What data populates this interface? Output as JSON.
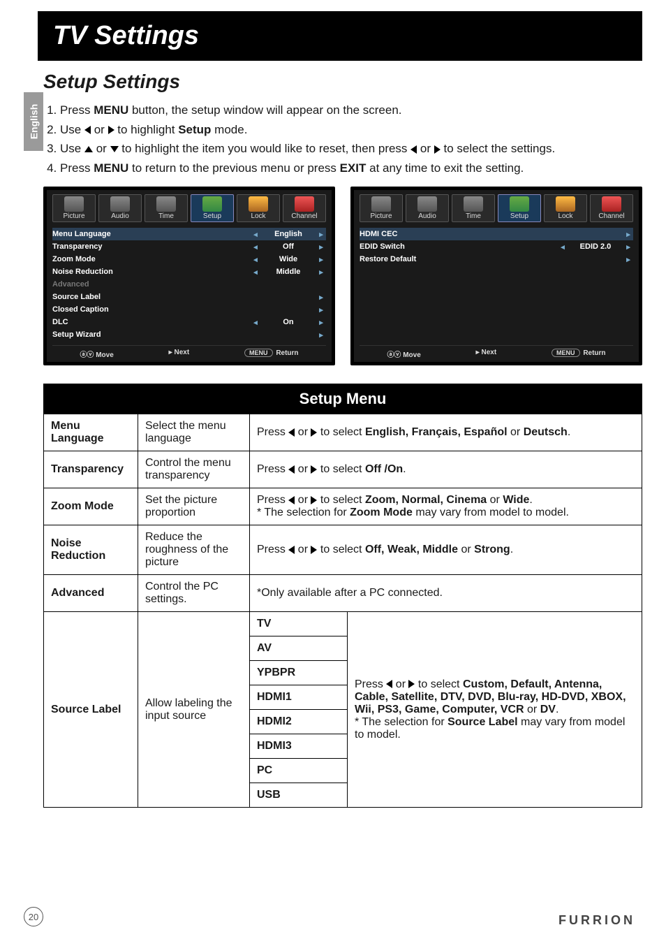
{
  "page": {
    "language_tab": "English",
    "title": "TV Settings",
    "section_title": "Setup Settings",
    "page_number": "20",
    "brand": "FURRION"
  },
  "instructions": [
    {
      "prefix": "Press ",
      "bold1": "MENU",
      "middle": " button, the setup window will appear on the screen.",
      "type": "plain"
    },
    {
      "prefix": "Use ",
      "arrows": "lr",
      "middle": " to highlight ",
      "bold1": "Setup",
      "suffix": " mode.",
      "type": "arrows_mid"
    },
    {
      "prefix": "Use ",
      "arrows": "ud",
      "middle": " to highlight the item you would like to reset, then press ",
      "arrows2": "lr",
      "suffix": " to select the settings.",
      "type": "arrows_double"
    },
    {
      "prefix": "Press ",
      "bold1": "MENU",
      "middle": " to return to the previous menu or press ",
      "bold2": "EXIT",
      "suffix": " at any time to exit the setting.",
      "type": "two_bold"
    }
  ],
  "osd": {
    "tabs": [
      "Picture",
      "Audio",
      "Time",
      "Setup",
      "Lock",
      "Channel"
    ],
    "active_tab_index": 3,
    "panel_left": [
      {
        "label": "Menu Language",
        "value": "English",
        "left": true,
        "right": true,
        "selected": true
      },
      {
        "label": "Transparency",
        "value": "Off",
        "left": true,
        "right": true
      },
      {
        "label": "Zoom Mode",
        "value": "Wide",
        "left": true,
        "right": true
      },
      {
        "label": "Noise Reduction",
        "value": "Middle",
        "left": true,
        "right": true
      },
      {
        "label": "Advanced",
        "value": "",
        "left": false,
        "right": false,
        "dim": true
      },
      {
        "label": "Source Label",
        "value": "",
        "left": false,
        "right": true
      },
      {
        "label": "Closed Caption",
        "value": "",
        "left": false,
        "right": true
      },
      {
        "label": "DLC",
        "value": "On",
        "left": true,
        "right": true
      },
      {
        "label": "Setup Wizard",
        "value": "",
        "left": false,
        "right": true
      }
    ],
    "panel_right": [
      {
        "label": "HDMI CEC",
        "value": "",
        "left": false,
        "right": true,
        "selected": true
      },
      {
        "label": "EDID Switch",
        "value": "EDID 2.0",
        "left": true,
        "right": true
      },
      {
        "label": "Restore Default",
        "value": "",
        "left": false,
        "right": true
      }
    ],
    "footer": {
      "move": "Move",
      "next": "Next",
      "menu_pill": "MENU",
      "return": "Return"
    }
  },
  "table": {
    "title": "Setup Menu",
    "rows": [
      {
        "name": "Menu Language",
        "desc": "Select the menu language",
        "instr_prefix": "Press ",
        "instr_mid": " to select ",
        "instr_bold": "English, Français, Español",
        "instr_join": " or ",
        "instr_bold2": "Deutsch",
        "instr_suffix": "."
      },
      {
        "name": "Transparency",
        "desc": "Control the menu transparency",
        "instr_prefix": "Press ",
        "instr_mid": " to select ",
        "instr_bold": "Off /On",
        "instr_suffix": "."
      },
      {
        "name": "Zoom Mode",
        "desc": "Set the picture proportion",
        "instr_prefix": "Press ",
        "instr_mid": " to select ",
        "instr_bold": "Zoom, Normal, Cinema",
        "instr_join": " or ",
        "instr_bold2": "Wide",
        "instr_suffix": ".",
        "note_prefix": "* The selection for ",
        "note_bold": "Zoom Mode",
        "note_suffix": " may vary from model to model."
      },
      {
        "name": "Noise Reduction",
        "desc": "Reduce the roughness of the picture",
        "instr_prefix": "Press ",
        "instr_mid": " to select ",
        "instr_bold": "Off, Weak, Middle",
        "instr_join": " or ",
        "instr_bold2": "Strong",
        "instr_suffix": "."
      },
      {
        "name": "Advanced",
        "desc": "Control the PC settings.",
        "plain": "*Only available after a PC connected."
      }
    ],
    "source_label": {
      "name": "Source Label",
      "desc": "Allow labeling the input source",
      "inputs": [
        "TV",
        "AV",
        "YPBPR",
        "HDMI1",
        "HDMI2",
        "HDMI3",
        "PC",
        "USB"
      ],
      "instr_prefix": "Press ",
      "instr_mid": " to select ",
      "instr_bold": "Custom, Default, Antenna, Cable, Satellite, DTV, DVD, Blu-ray, HD-DVD, XBOX, Wii, PS3, Game, Computer, VCR",
      "instr_join": " or ",
      "instr_bold2": "DV",
      "instr_suffix": ".",
      "note_prefix": "* The selection for ",
      "note_bold": "Source Label",
      "note_suffix": " may vary from model to model."
    }
  }
}
